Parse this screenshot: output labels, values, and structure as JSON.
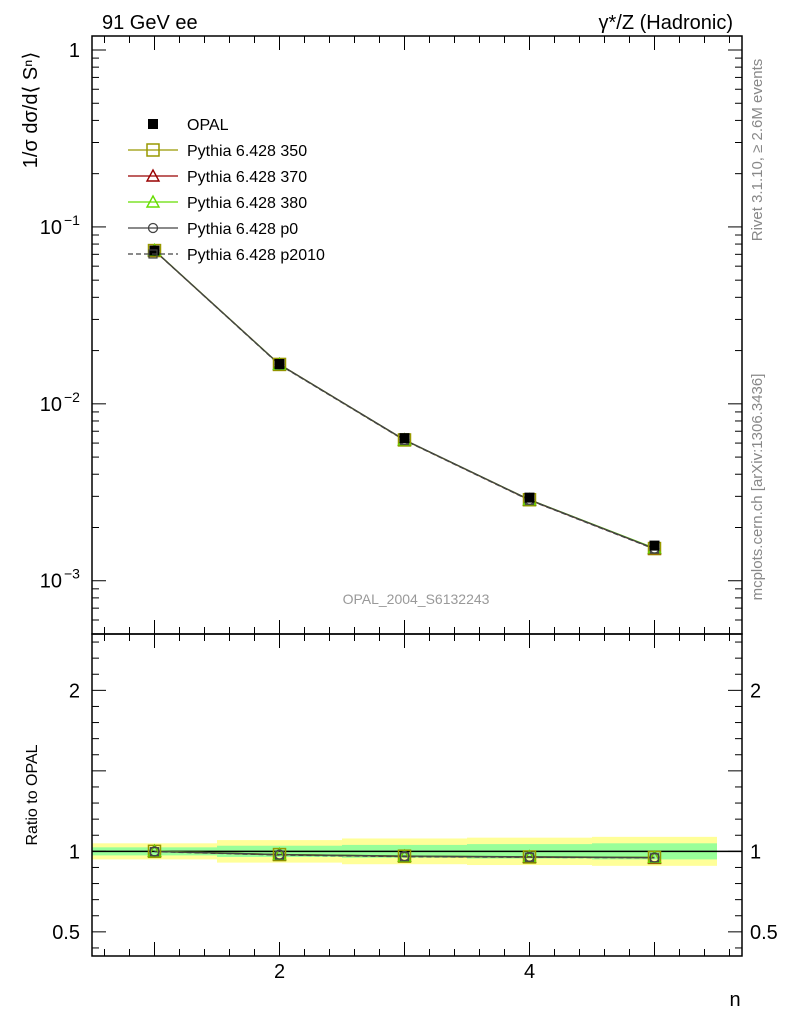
{
  "header": {
    "left_title": "91 GeV ee",
    "right_title": "γ*/Z (Hadronic)"
  },
  "side_labels": {
    "rivet": "Rivet 3.1.10, ≥ 2.6M events",
    "mcplots": "mcplots.cern.ch [arXiv:1306.3436]"
  },
  "watermark": "OPAL_2004_S6132243",
  "chart_data": [
    {
      "type": "line",
      "panel": "main",
      "ylabel": "1/σ dσ/d⟨ Sⁿ⟩",
      "yscale": "log",
      "ylim": [
        0.0005,
        1.2
      ],
      "xlim": [
        0.5,
        5.7
      ],
      "y_ticks_major": [
        {
          "value": 0.001,
          "base": "10",
          "exp": "−3"
        },
        {
          "value": 0.01,
          "base": "10",
          "exp": "−2"
        },
        {
          "value": 0.1,
          "base": "10",
          "exp": "−1"
        },
        {
          "value": 1,
          "base": "1",
          "exp": ""
        }
      ],
      "x": [
        1,
        2,
        3,
        4,
        5
      ],
      "legend_placement": "top-left",
      "series": [
        {
          "name": "OPAL",
          "kind": "data",
          "color": "#000000",
          "marker": "filled-square",
          "values": [
            0.0735,
            0.0168,
            0.0064,
            0.00295,
            0.00158
          ],
          "errors": [
            0.0018,
            0.0004,
            0.0002,
            0.00012,
            8e-05
          ]
        },
        {
          "name": "Pythia 6.428 350",
          "color": "#999900",
          "marker": "open-square",
          "line": "solid",
          "values": [
            0.0735,
            0.0167,
            0.00625,
            0.00287,
            0.00152
          ]
        },
        {
          "name": "Pythia 6.428 370",
          "color": "#990000",
          "marker": "open-triangle",
          "line": "solid",
          "values": [
            0.0735,
            0.0167,
            0.00624,
            0.00286,
            0.00152
          ]
        },
        {
          "name": "Pythia 6.428 380",
          "color": "#66dd00",
          "marker": "open-triangle",
          "line": "solid",
          "values": [
            0.0736,
            0.0167,
            0.00625,
            0.00287,
            0.00153
          ]
        },
        {
          "name": "Pythia 6.428 p0",
          "color": "#444444",
          "marker": "open-circle",
          "line": "solid",
          "values": [
            0.0735,
            0.0167,
            0.00626,
            0.00287,
            0.00152
          ]
        },
        {
          "name": "Pythia 6.428 p2010",
          "color": "#444444",
          "marker": "open-square-small",
          "line": "dashed",
          "values": [
            0.0734,
            0.0166,
            0.00622,
            0.00285,
            0.00151
          ]
        }
      ]
    },
    {
      "type": "line",
      "panel": "ratio",
      "ylabel": "Ratio to OPAL",
      "xlabel": "n",
      "ylim": [
        0.35,
        2.35
      ],
      "y_ticks_labels": [
        {
          "value": 0.5,
          "label": "0.5"
        },
        {
          "value": 1,
          "label": "1"
        },
        {
          "value": 2,
          "label": "2"
        }
      ],
      "x_ticks_labels": [
        {
          "value": 2,
          "label": "2"
        },
        {
          "value": 4,
          "label": "4"
        }
      ],
      "bins": [
        [
          0.5,
          1.5
        ],
        [
          1.5,
          2.5
        ],
        [
          2.5,
          3.5
        ],
        [
          3.5,
          4.5
        ],
        [
          4.5,
          5.5
        ]
      ],
      "band_inner": [
        [
          0.975,
          1.025
        ],
        [
          0.965,
          1.035
        ],
        [
          0.96,
          1.04
        ],
        [
          0.955,
          1.045
        ],
        [
          0.95,
          1.05
        ]
      ],
      "band_outer": [
        [
          0.95,
          1.05
        ],
        [
          0.93,
          1.07
        ],
        [
          0.92,
          1.08
        ],
        [
          0.915,
          1.085
        ],
        [
          0.91,
          1.09
        ]
      ],
      "band_colors": {
        "inner": "#99ff99",
        "outer": "#ffff99"
      },
      "x": [
        1,
        2,
        3,
        4,
        5
      ],
      "series": [
        {
          "name": "Pythia 6.428 350",
          "color": "#999900",
          "marker": "open-square",
          "line": "solid",
          "values": [
            1.0,
            0.98,
            0.97,
            0.965,
            0.962
          ]
        },
        {
          "name": "Pythia 6.428 370",
          "color": "#990000",
          "marker": "open-triangle",
          "line": "solid",
          "values": [
            1.0,
            0.979,
            0.969,
            0.964,
            0.961
          ]
        },
        {
          "name": "Pythia 6.428 380",
          "color": "#66dd00",
          "marker": "open-triangle",
          "line": "solid",
          "values": [
            1.001,
            0.98,
            0.97,
            0.966,
            0.963
          ]
        },
        {
          "name": "Pythia 6.428 p0",
          "color": "#444444",
          "marker": "open-circle",
          "line": "solid",
          "values": [
            1.0,
            0.98,
            0.971,
            0.966,
            0.962
          ]
        },
        {
          "name": "Pythia 6.428 p2010",
          "color": "#444444",
          "marker": "open-square-small",
          "line": "dashed",
          "values": [
            0.998,
            0.977,
            0.967,
            0.963,
            0.96
          ]
        }
      ]
    }
  ]
}
